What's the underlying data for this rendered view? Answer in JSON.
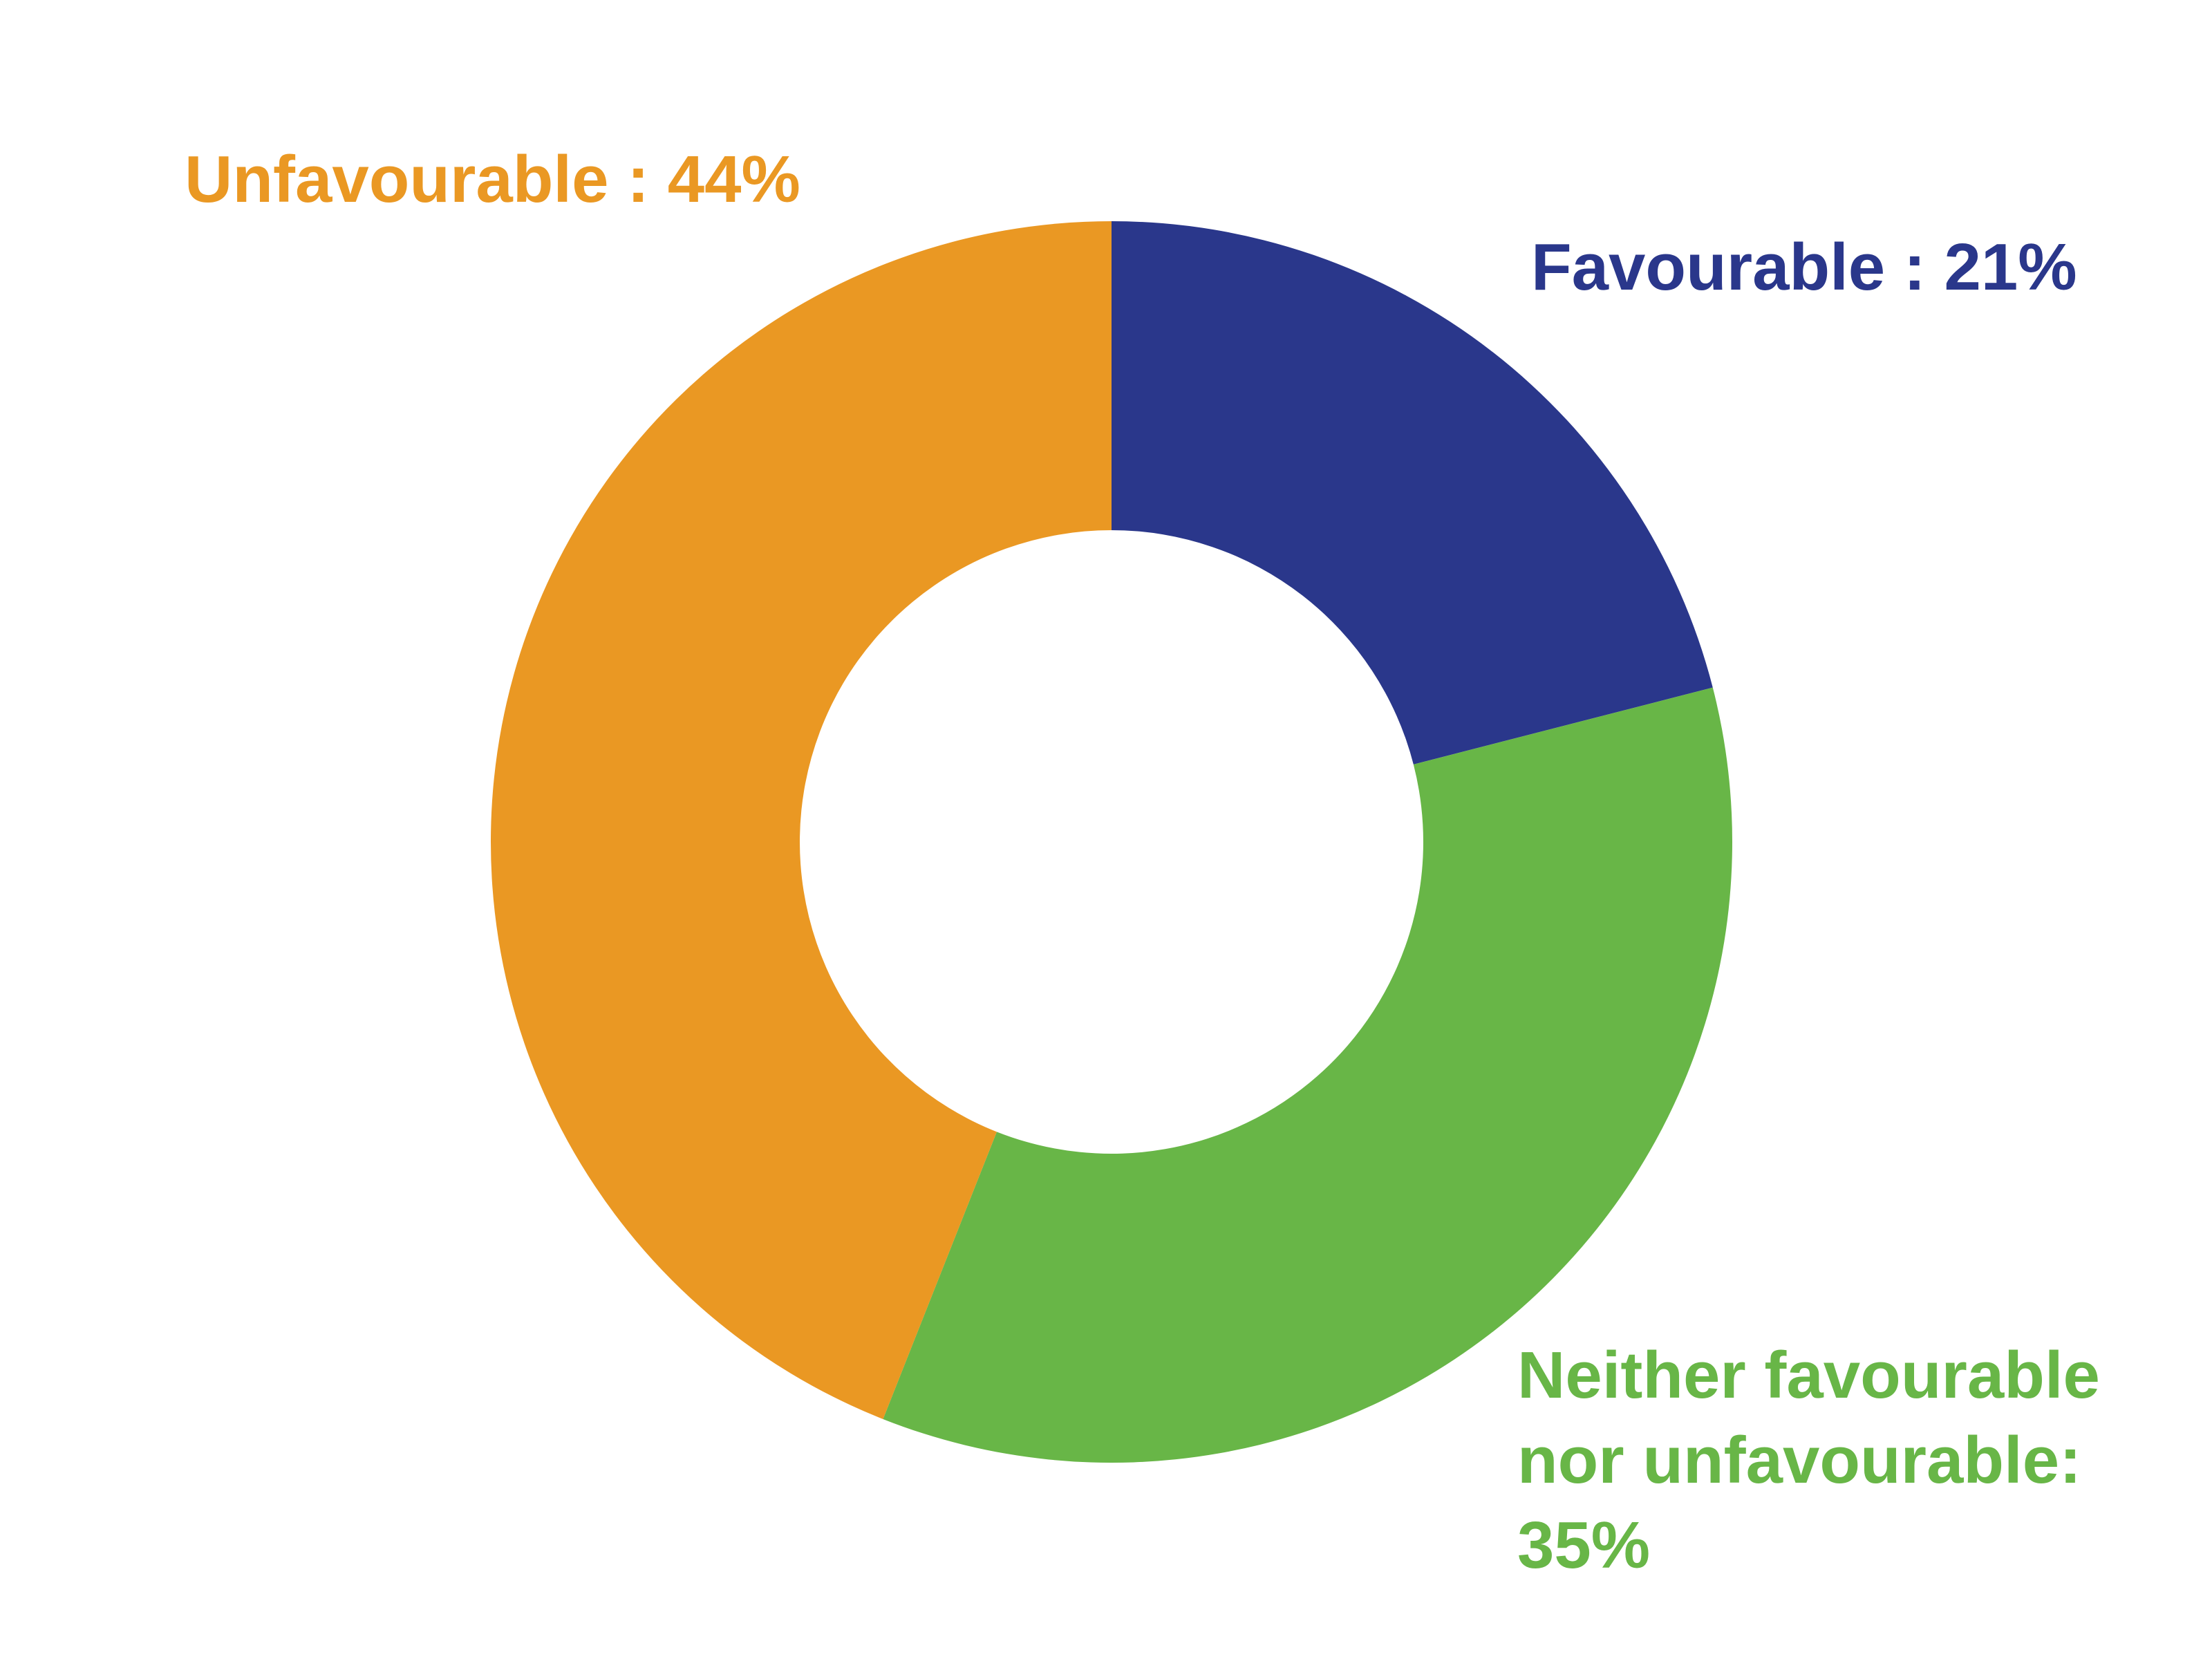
{
  "chart_data": {
    "type": "donut",
    "values": [
      21,
      35,
      44
    ],
    "value_labels": [
      "Favourable : 21%",
      "Neither favourable nor unfavourable: 35%",
      "Unfavourable : 44%"
    ],
    "colors": [
      "#2a378b",
      "#68b647",
      "#ea9823"
    ]
  }
}
